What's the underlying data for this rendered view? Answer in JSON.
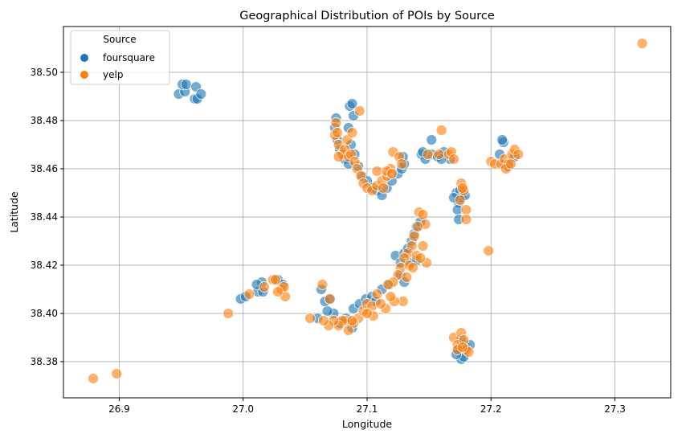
{
  "chart_data": {
    "type": "scatter",
    "title": "Geographical Distribution of POIs by Source",
    "xlabel": "Longitude",
    "ylabel": "Latitude",
    "xlim": [
      26.855,
      27.345
    ],
    "ylim": [
      38.365,
      38.519
    ],
    "xticks": [
      "26.9",
      "27.0",
      "27.1",
      "27.2",
      "27.3"
    ],
    "xtick_values": [
      26.9,
      27.0,
      27.1,
      27.2,
      27.3
    ],
    "yticks": [
      "38.38",
      "38.40",
      "38.42",
      "38.44",
      "38.46",
      "38.48",
      "38.50"
    ],
    "ytick_values": [
      38.38,
      38.4,
      38.42,
      38.44,
      38.46,
      38.48,
      38.5
    ],
    "grid": true,
    "legend": {
      "title": "Source",
      "placement": "top-left"
    },
    "series": [
      {
        "name": "foursquare",
        "color": "#1f77b4",
        "points": [
          [
            26.948,
            38.491
          ],
          [
            26.953,
            38.492
          ],
          [
            26.951,
            38.495
          ],
          [
            26.954,
            38.495
          ],
          [
            26.962,
            38.494
          ],
          [
            26.961,
            38.489
          ],
          [
            26.963,
            38.489
          ],
          [
            26.966,
            38.491
          ],
          [
            27.075,
            38.481
          ],
          [
            27.074,
            38.477
          ],
          [
            27.076,
            38.472
          ],
          [
            27.078,
            38.468
          ],
          [
            27.082,
            38.464
          ],
          [
            27.085,
            38.462
          ],
          [
            27.086,
            38.486
          ],
          [
            27.088,
            38.487
          ],
          [
            27.089,
            38.482
          ],
          [
            27.085,
            38.477
          ],
          [
            27.087,
            38.47
          ],
          [
            27.09,
            38.466
          ],
          [
            27.093,
            38.461
          ],
          [
            27.096,
            38.457
          ],
          [
            27.1,
            38.455
          ],
          [
            27.104,
            38.452
          ],
          [
            27.108,
            38.451
          ],
          [
            27.112,
            38.449
          ],
          [
            27.116,
            38.452
          ],
          [
            27.12,
            38.455
          ],
          [
            27.125,
            38.458
          ],
          [
            27.128,
            38.46
          ],
          [
            27.13,
            38.462
          ],
          [
            27.129,
            38.465
          ],
          [
            27.152,
            38.472
          ],
          [
            27.144,
            38.466
          ],
          [
            27.147,
            38.464
          ],
          [
            27.152,
            38.466
          ],
          [
            27.157,
            38.465
          ],
          [
            27.162,
            38.467
          ],
          [
            27.167,
            38.464
          ],
          [
            27.16,
            38.464
          ],
          [
            27.145,
            38.467
          ],
          [
            27.172,
            38.45
          ],
          [
            27.175,
            38.451
          ],
          [
            27.174,
            38.446
          ],
          [
            27.176,
            38.448
          ],
          [
            27.173,
            38.443
          ],
          [
            27.174,
            38.439
          ],
          [
            27.179,
            38.449
          ],
          [
            27.17,
            38.448
          ],
          [
            27.207,
            38.466
          ],
          [
            27.21,
            38.471
          ],
          [
            27.209,
            38.472
          ],
          [
            27.211,
            38.462
          ],
          [
            27.214,
            38.461
          ],
          [
            27.219,
            38.465
          ],
          [
            27.123,
            38.424
          ],
          [
            27.127,
            38.421
          ],
          [
            27.13,
            38.425
          ],
          [
            27.133,
            38.427
          ],
          [
            27.136,
            38.43
          ],
          [
            27.138,
            38.433
          ],
          [
            27.14,
            38.436
          ],
          [
            27.143,
            38.438
          ],
          [
            27.135,
            38.421
          ],
          [
            27.14,
            38.422
          ],
          [
            27.127,
            38.416
          ],
          [
            27.13,
            38.413
          ],
          [
            27.118,
            38.412
          ],
          [
            27.112,
            38.41
          ],
          [
            27.089,
            38.402
          ],
          [
            27.094,
            38.404
          ],
          [
            27.099,
            38.406
          ],
          [
            27.104,
            38.407
          ],
          [
            27.107,
            38.405
          ],
          [
            27.083,
            38.398
          ],
          [
            27.078,
            38.396
          ],
          [
            27.073,
            38.4
          ],
          [
            27.068,
            38.401
          ],
          [
            27.066,
            38.405
          ],
          [
            27.07,
            38.406
          ],
          [
            27.063,
            38.41
          ],
          [
            27.06,
            38.398
          ],
          [
            27.088,
            38.394
          ],
          [
            26.998,
            38.406
          ],
          [
            27.002,
            38.407
          ],
          [
            27.012,
            38.409
          ],
          [
            27.016,
            38.409
          ],
          [
            27.015,
            38.413
          ],
          [
            27.011,
            38.412
          ],
          [
            27.028,
            38.414
          ],
          [
            27.032,
            38.412
          ],
          [
            27.173,
            38.385
          ],
          [
            27.176,
            38.381
          ],
          [
            27.178,
            38.382
          ],
          [
            27.18,
            38.386
          ],
          [
            27.183,
            38.387
          ],
          [
            27.172,
            38.383
          ],
          [
            27.176,
            38.389
          ]
        ]
      },
      {
        "name": "yelp",
        "color": "#ff7f0e",
        "points": [
          [
            27.322,
            38.512
          ],
          [
            26.879,
            38.373
          ],
          [
            26.898,
            38.375
          ],
          [
            26.988,
            38.4
          ],
          [
            27.094,
            38.484
          ],
          [
            27.16,
            38.476
          ],
          [
            27.198,
            38.426
          ],
          [
            27.075,
            38.479
          ],
          [
            27.074,
            38.474
          ],
          [
            27.077,
            38.47
          ],
          [
            27.08,
            38.466
          ],
          [
            27.082,
            38.468
          ],
          [
            27.084,
            38.472
          ],
          [
            27.085,
            38.465
          ],
          [
            27.087,
            38.466
          ],
          [
            27.09,
            38.463
          ],
          [
            27.092,
            38.46
          ],
          [
            27.095,
            38.457
          ],
          [
            27.097,
            38.454
          ],
          [
            27.1,
            38.452
          ],
          [
            27.104,
            38.451
          ],
          [
            27.108,
            38.453
          ],
          [
            27.112,
            38.455
          ],
          [
            27.116,
            38.457
          ],
          [
            27.119,
            38.46
          ],
          [
            27.121,
            38.467
          ],
          [
            27.126,
            38.465
          ],
          [
            27.128,
            38.462
          ],
          [
            27.108,
            38.459
          ],
          [
            27.116,
            38.459
          ],
          [
            27.088,
            38.475
          ],
          [
            27.076,
            38.475
          ],
          [
            27.077,
            38.465
          ],
          [
            27.12,
            38.458
          ],
          [
            27.113,
            38.452
          ],
          [
            27.149,
            38.466
          ],
          [
            27.158,
            38.466
          ],
          [
            27.166,
            38.466
          ],
          [
            27.168,
            38.467
          ],
          [
            27.17,
            38.464
          ],
          [
            27.176,
            38.454
          ],
          [
            27.178,
            38.451
          ],
          [
            27.175,
            38.447
          ],
          [
            27.18,
            38.443
          ],
          [
            27.18,
            38.439
          ],
          [
            27.177,
            38.452
          ],
          [
            27.2,
            38.463
          ],
          [
            27.203,
            38.462
          ],
          [
            27.208,
            38.462
          ],
          [
            27.211,
            38.464
          ],
          [
            27.214,
            38.462
          ],
          [
            27.217,
            38.466
          ],
          [
            27.219,
            38.468
          ],
          [
            27.222,
            38.466
          ],
          [
            27.212,
            38.46
          ],
          [
            27.216,
            38.462
          ],
          [
            27.142,
            38.442
          ],
          [
            27.145,
            38.441
          ],
          [
            27.147,
            38.437
          ],
          [
            27.141,
            38.436
          ],
          [
            27.138,
            38.432
          ],
          [
            27.136,
            38.428
          ],
          [
            27.133,
            38.425
          ],
          [
            27.13,
            38.423
          ],
          [
            27.127,
            38.419
          ],
          [
            27.125,
            38.416
          ],
          [
            27.121,
            38.413
          ],
          [
            27.117,
            38.412
          ],
          [
            27.129,
            38.405
          ],
          [
            27.132,
            38.415
          ],
          [
            27.134,
            38.42
          ],
          [
            27.14,
            38.424
          ],
          [
            27.145,
            38.428
          ],
          [
            27.148,
            38.421
          ],
          [
            27.143,
            38.423
          ],
          [
            27.137,
            38.419
          ],
          [
            27.122,
            38.405
          ],
          [
            27.119,
            38.407
          ],
          [
            27.115,
            38.402
          ],
          [
            27.093,
            38.398
          ],
          [
            27.097,
            38.401
          ],
          [
            27.1,
            38.404
          ],
          [
            27.104,
            38.403
          ],
          [
            27.108,
            38.408
          ],
          [
            27.111,
            38.404
          ],
          [
            27.105,
            38.399
          ],
          [
            27.089,
            38.396
          ],
          [
            27.085,
            38.393
          ],
          [
            27.082,
            38.397
          ],
          [
            27.08,
            38.397
          ],
          [
            27.077,
            38.395
          ],
          [
            27.073,
            38.397
          ],
          [
            27.069,
            38.395
          ],
          [
            27.065,
            38.397
          ],
          [
            27.07,
            38.406
          ],
          [
            27.064,
            38.412
          ],
          [
            27.054,
            38.398
          ],
          [
            27.088,
            38.397
          ],
          [
            27.1,
            38.4
          ],
          [
            27.005,
            38.408
          ],
          [
            27.017,
            38.411
          ],
          [
            27.024,
            38.414
          ],
          [
            27.026,
            38.414
          ],
          [
            27.031,
            38.41
          ],
          [
            27.034,
            38.407
          ],
          [
            27.033,
            38.411
          ],
          [
            27.028,
            38.409
          ],
          [
            27.17,
            38.39
          ],
          [
            27.173,
            38.387
          ],
          [
            27.176,
            38.392
          ],
          [
            27.178,
            38.389
          ],
          [
            27.18,
            38.385
          ],
          [
            27.182,
            38.384
          ],
          [
            27.173,
            38.385
          ],
          [
            27.177,
            38.386
          ]
        ]
      }
    ]
  }
}
